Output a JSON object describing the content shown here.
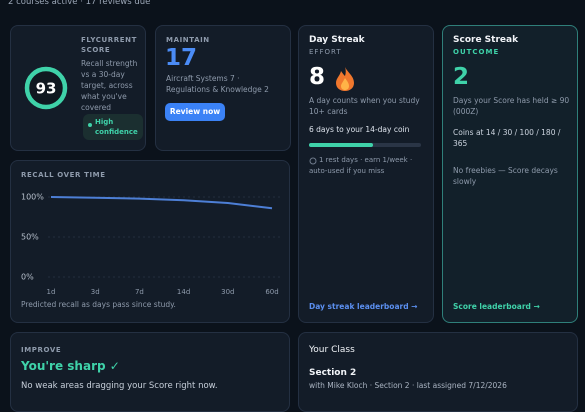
{
  "header": {
    "summary": "2 courses active · 17 reviews due"
  },
  "score_card": {
    "label": "FLYCURRENT SCORE",
    "score": "93",
    "description": "Recall strength vs a 30-day target, across what you've covered",
    "confidence": "High confidence"
  },
  "maintain_card": {
    "label": "MAINTAIN",
    "count": "17",
    "topics": "Aircraft Systems 7 · Regulations & Knowledge 2",
    "button": "Review now"
  },
  "day_streak": {
    "title": "Day Streak",
    "kind": "EFFORT",
    "count": "8",
    "description": "A day counts when you study 10+ cards",
    "progress_text": "6 days to your 14-day coin",
    "rest_text": "1 rest days · earn 1/week · auto-used if you miss",
    "link": "Day streak leaderboard →"
  },
  "score_streak": {
    "title": "Score Streak",
    "kind": "OUTCOME",
    "count": "2",
    "description": "Days your Score has held ≥ 90 (000Z)",
    "coins": "Coins at 14 / 30 / 100 / 180 / 365",
    "note": "No freebies — Score decays slowly",
    "link": "Score leaderboard →"
  },
  "chart_data": {
    "type": "line",
    "title": "RECALL OVER TIME",
    "caption": "Predicted recall as days pass since study.",
    "categories": [
      "1d",
      "3d",
      "7d",
      "14d",
      "30d",
      "60d"
    ],
    "values": [
      100,
      99,
      98,
      96,
      92.5,
      86
    ],
    "color": "#4d7fd6",
    "ylim": [
      0,
      100
    ],
    "yticks": [
      {
        "value": 0,
        "label": "0%"
      },
      {
        "value": 50,
        "label": "50%"
      },
      {
        "value": 100,
        "label": "100%"
      }
    ],
    "grid": true
  },
  "improve": {
    "label": "IMPROVE",
    "headline": "You're sharp ✓",
    "description": "No weak areas dragging your Score right now."
  },
  "class": {
    "title": "Your Class",
    "section": "Section 2",
    "details": "with Mike Kloch · Section 2 · last assigned 7/12/2026"
  }
}
